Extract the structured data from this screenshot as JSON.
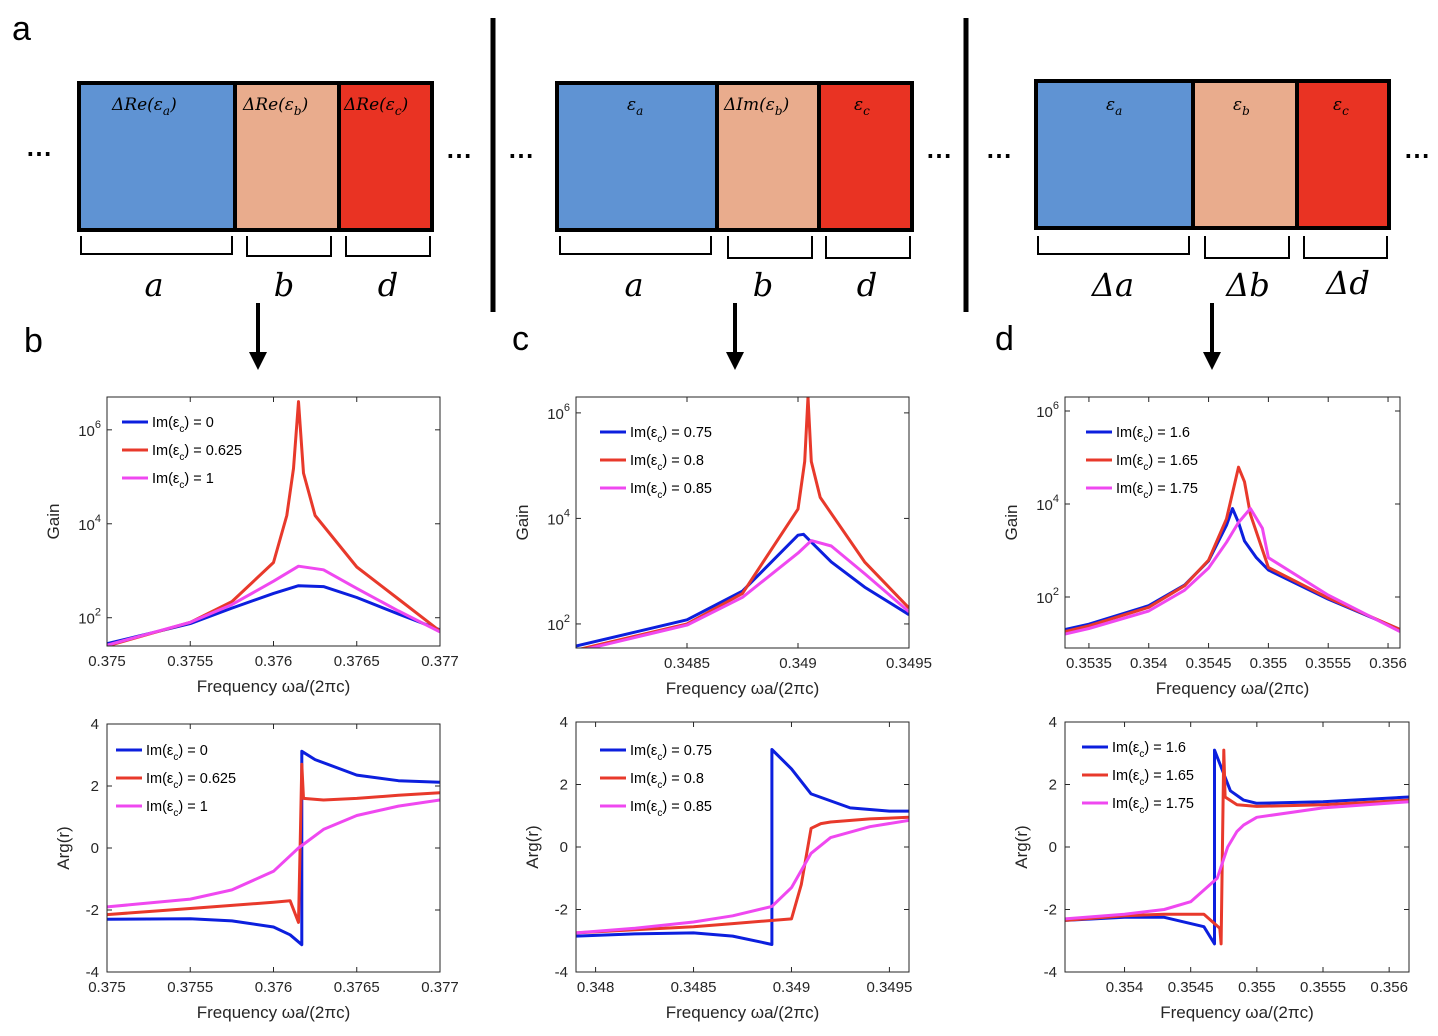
{
  "panel_labels": {
    "a": "a",
    "b": "b",
    "c": "c",
    "d": "d"
  },
  "ellipsis": "⋯",
  "colors": {
    "block_a": "#5f93d3",
    "block_b": "#e9ac8d",
    "block_c": "#e93323",
    "series_blue": "#0c1fde",
    "series_red": "#e8392b",
    "series_magenta": "#ef48f0"
  },
  "schematics": [
    {
      "blocks": [
        "ΔRe(ε",
        "ΔRe(ε",
        "ΔRe(ε"
      ],
      "subs": [
        "a",
        "b",
        "c"
      ],
      "closers": [
        ")",
        ")",
        ")"
      ],
      "dims": [
        "a",
        "b",
        "d"
      ]
    },
    {
      "blocks": [
        "ε",
        "ΔIm(ε",
        "ε"
      ],
      "subs": [
        "a",
        "b",
        "c"
      ],
      "closers": [
        "",
        ")",
        ""
      ],
      "dims": [
        "a",
        "b",
        "d"
      ]
    },
    {
      "blocks": [
        "ε",
        "ε",
        "ε"
      ],
      "subs": [
        "a",
        "b",
        "c"
      ],
      "closers": [
        "",
        "",
        ""
      ],
      "dims": [
        "Δa",
        "Δb",
        "Δd"
      ]
    }
  ],
  "chart_data": [
    {
      "type": "line",
      "panel": "b",
      "ylabel": "Gain",
      "xlabel": "Frequency ωa/(2πc)",
      "yscale": "log",
      "xlim": [
        0.375,
        0.377
      ],
      "ylim": [
        25,
        5000000
      ],
      "xticks": [
        0.375,
        0.3755,
        0.376,
        0.3765,
        0.377
      ],
      "xticklabels": [
        "0.375",
        "0.3755",
        "0.376",
        "0.3765",
        "0.377"
      ],
      "yticks": [
        100,
        10000,
        1000000
      ],
      "ytick_exp": [
        "2",
        "4",
        "6"
      ],
      "legend_items": [
        "Im(ε",
        "Im(ε",
        "Im(ε"
      ],
      "legend_values": [
        "= 0",
        "= 0.625",
        "= 1"
      ],
      "legend_sub": "c",
      "series": [
        {
          "name": "Im(εc) = 0",
          "color": "blue",
          "x": [
            0.375,
            0.3755,
            0.37575,
            0.376,
            0.37615,
            0.3763,
            0.3765,
            0.37675,
            0.377
          ],
          "y": [
            28,
            75,
            160,
            330,
            480,
            460,
            270,
            120,
            55
          ]
        },
        {
          "name": "Im(εc) = 0.625",
          "color": "red",
          "x": [
            0.375,
            0.3755,
            0.37575,
            0.376,
            0.37608,
            0.37612,
            0.37615,
            0.37618,
            0.37625,
            0.3765,
            0.37675,
            0.377
          ],
          "y": [
            25,
            80,
            220,
            1500,
            15000,
            150000,
            4000000,
            120000,
            15000,
            1200,
            250,
            52
          ]
        },
        {
          "name": "Im(εc) = 1",
          "color": "magenta",
          "x": [
            0.375,
            0.3755,
            0.37575,
            0.376,
            0.37615,
            0.3763,
            0.3765,
            0.37675,
            0.377
          ],
          "y": [
            26,
            80,
            190,
            600,
            1250,
            1050,
            420,
            140,
            50
          ]
        }
      ]
    },
    {
      "type": "line",
      "panel": "c",
      "ylabel": "Gain",
      "xlabel": "Frequency ωa/(2πc)",
      "yscale": "log",
      "xlim": [
        0.348,
        0.3495
      ],
      "ylim": [
        35,
        2000000
      ],
      "xticks": [
        0.3485,
        0.349,
        0.3495
      ],
      "xticklabels": [
        "0.3485",
        "0.349",
        "0.3495"
      ],
      "yticks": [
        100,
        10000,
        1000000
      ],
      "ytick_exp": [
        "2",
        "4",
        "6"
      ],
      "legend_items": [
        "Im(ε",
        "Im(ε",
        "Im(ε"
      ],
      "legend_values": [
        "= 0.75",
        "= 0.8",
        "= 0.85"
      ],
      "legend_sub": "c",
      "series": [
        {
          "name": "Im(εc) = 0.75",
          "color": "blue",
          "x": [
            0.348,
            0.3485,
            0.34875,
            0.349,
            0.349025,
            0.34915,
            0.3493,
            0.3495
          ],
          "y": [
            38,
            120,
            420,
            4800,
            5000,
            1500,
            500,
            150
          ]
        },
        {
          "name": "Im(εc) = 0.8",
          "color": "red",
          "x": [
            0.348,
            0.3485,
            0.34875,
            0.349,
            0.34903,
            0.349045,
            0.34906,
            0.3491,
            0.3493,
            0.3495
          ],
          "y": [
            32,
            100,
            380,
            15000,
            120000,
            2000000,
            120000,
            25000,
            1500,
            200
          ]
        },
        {
          "name": "Im(εc) = 0.85",
          "color": "magenta",
          "x": [
            0.348,
            0.3485,
            0.34875,
            0.349,
            0.34906,
            0.34915,
            0.3493,
            0.3495
          ],
          "y": [
            30,
            95,
            320,
            2200,
            3800,
            3000,
            900,
            170
          ]
        }
      ]
    },
    {
      "type": "line",
      "panel": "d",
      "ylabel": "Gain",
      "xlabel": "Frequency ωa/(2πc)",
      "yscale": "log",
      "xlim": [
        0.3533,
        0.3561
      ],
      "ylim": [
        8,
        2000000
      ],
      "xticks": [
        0.3535,
        0.354,
        0.3545,
        0.355,
        0.3555,
        0.356
      ],
      "xticklabels": [
        "0.3535",
        "0.354",
        "0.3545",
        "0.355",
        "0.3555",
        "0.356"
      ],
      "yticks": [
        100,
        10000,
        1000000
      ],
      "ytick_exp": [
        "2",
        "4",
        "6"
      ],
      "legend_items": [
        "Im(ε",
        "Im(ε",
        "Im(ε"
      ],
      "legend_values": [
        "= 1.6",
        "= 1.65",
        "= 1.75"
      ],
      "legend_sub": "c",
      "series": [
        {
          "name": "Im(εc) = 1.6",
          "color": "blue",
          "x": [
            0.3533,
            0.3535,
            0.354,
            0.3543,
            0.3545,
            0.35465,
            0.3547,
            0.35475,
            0.3548,
            0.3549,
            0.355,
            0.3555,
            0.3561
          ],
          "y": [
            20,
            26,
            65,
            180,
            600,
            3500,
            8000,
            4000,
            1600,
            700,
            380,
            90,
            20
          ]
        },
        {
          "name": "Im(εc) = 1.65",
          "color": "red",
          "x": [
            0.3533,
            0.3535,
            0.354,
            0.3543,
            0.3545,
            0.35465,
            0.35475,
            0.3548,
            0.35485,
            0.3549,
            0.355,
            0.3555,
            0.3561
          ],
          "y": [
            18,
            24,
            60,
            175,
            620,
            4800,
            62000,
            30000,
            6000,
            2500,
            430,
            95,
            20
          ]
        },
        {
          "name": "Im(εc) = 1.75",
          "color": "magenta",
          "x": [
            0.3533,
            0.3535,
            0.354,
            0.3543,
            0.3545,
            0.35465,
            0.35475,
            0.35485,
            0.35495,
            0.355,
            0.3555,
            0.3561
          ],
          "y": [
            16,
            21,
            50,
            140,
            420,
            1500,
            4000,
            8000,
            3000,
            700,
            110,
            18
          ]
        }
      ]
    },
    {
      "type": "line",
      "panel": "b",
      "ylabel": "Arg(r)",
      "xlabel": "Frequency ωa/(2πc)",
      "yscale": "linear",
      "xlim": [
        0.375,
        0.377
      ],
      "ylim": [
        -4,
        4
      ],
      "xticks": [
        0.375,
        0.3755,
        0.376,
        0.3765,
        0.377
      ],
      "xticklabels": [
        "0.375",
        "0.3755",
        "0.376",
        "0.3765",
        "0.377"
      ],
      "yticks": [
        -4,
        -2,
        0,
        2,
        4
      ],
      "yticklabels": [
        "-4",
        "-2",
        "0",
        "2",
        "4"
      ],
      "legend_items": [
        "Im(ε",
        "Im(ε",
        "Im(ε"
      ],
      "legend_values": [
        "= 0",
        "= 0.625",
        "= 1"
      ],
      "legend_sub": "c",
      "series": [
        {
          "name": "Im(εc) = 0",
          "color": "blue",
          "x": [
            0.375,
            0.3755,
            0.37575,
            0.376,
            0.3761,
            0.37617,
            0.37617,
            0.37625,
            0.3765,
            0.37675,
            0.377
          ],
          "y": [
            -2.3,
            -2.28,
            -2.35,
            -2.55,
            -2.8,
            -3.12,
            3.12,
            2.85,
            2.35,
            2.17,
            2.12
          ]
        },
        {
          "name": "Im(εc) = 0.625",
          "color": "red",
          "x": [
            0.375,
            0.3755,
            0.37575,
            0.376,
            0.3761,
            0.37615,
            0.37616,
            0.37617,
            0.37618,
            0.3763,
            0.3765,
            0.37675,
            0.377
          ],
          "y": [
            -2.15,
            -1.95,
            -1.85,
            -1.75,
            -1.7,
            -2.4,
            0.0,
            2.7,
            1.6,
            1.55,
            1.6,
            1.7,
            1.78
          ]
        },
        {
          "name": "Im(εc) = 1",
          "color": "magenta",
          "x": [
            0.375,
            0.3755,
            0.37575,
            0.376,
            0.3761,
            0.37615,
            0.3763,
            0.3765,
            0.37675,
            0.377
          ],
          "y": [
            -1.9,
            -1.65,
            -1.35,
            -0.75,
            -0.25,
            0.0,
            0.6,
            1.05,
            1.35,
            1.55
          ]
        }
      ]
    },
    {
      "type": "line",
      "panel": "c",
      "ylabel": "Arg(r)",
      "xlabel": "Frequency ωa/(2πc)",
      "yscale": "linear",
      "xlim": [
        0.3479,
        0.3496
      ],
      "ylim": [
        -4,
        4
      ],
      "xticks": [
        0.348,
        0.3485,
        0.349,
        0.3495
      ],
      "xticklabels": [
        "0.348",
        "0.3485",
        "0.349",
        "0.3495"
      ],
      "yticks": [
        -4,
        -2,
        0,
        2,
        4
      ],
      "yticklabels": [
        "-4",
        "-2",
        "0",
        "2",
        "4"
      ],
      "legend_items": [
        "Im(ε",
        "Im(ε",
        "Im(ε"
      ],
      "legend_values": [
        "= 0.75",
        "= 0.8",
        "= 0.85"
      ],
      "legend_sub": "c",
      "series": [
        {
          "name": "Im(εc) = 0.75",
          "color": "blue",
          "x": [
            0.3479,
            0.3482,
            0.3485,
            0.3487,
            0.34885,
            0.3489,
            0.3489,
            0.349,
            0.3491,
            0.3493,
            0.3495,
            0.3496
          ],
          "y": [
            -2.85,
            -2.78,
            -2.75,
            -2.85,
            -3.05,
            -3.12,
            3.12,
            2.5,
            1.7,
            1.25,
            1.15,
            1.15
          ]
        },
        {
          "name": "Im(εc) = 0.8",
          "color": "red",
          "x": [
            0.3479,
            0.3482,
            0.3485,
            0.3487,
            0.349,
            0.34905,
            0.3491,
            0.34915,
            0.3492,
            0.3494,
            0.3496
          ],
          "y": [
            -2.75,
            -2.65,
            -2.55,
            -2.45,
            -2.3,
            -1.2,
            0.6,
            0.75,
            0.8,
            0.9,
            0.95
          ]
        },
        {
          "name": "Im(εc) = 0.85",
          "color": "magenta",
          "x": [
            0.3479,
            0.3482,
            0.3485,
            0.3487,
            0.3489,
            0.349,
            0.3491,
            0.3492,
            0.3494,
            0.3496
          ],
          "y": [
            -2.75,
            -2.6,
            -2.4,
            -2.2,
            -1.9,
            -1.3,
            -0.2,
            0.3,
            0.65,
            0.85
          ]
        }
      ]
    },
    {
      "type": "line",
      "panel": "d",
      "ylabel": "Arg(r)",
      "xlabel": "Frequency ωa/(2πc)",
      "yscale": "linear",
      "xlim": [
        0.35355,
        0.35615
      ],
      "ylim": [
        -4,
        4
      ],
      "xticks": [
        0.354,
        0.3545,
        0.355,
        0.3555,
        0.356
      ],
      "xticklabels": [
        "0.354",
        "0.3545",
        "0.355",
        "0.3555",
        "0.356"
      ],
      "yticks": [
        -4,
        -2,
        0,
        2,
        4
      ],
      "yticklabels": [
        "-4",
        "-2",
        "0",
        "2",
        "4"
      ],
      "legend_items": [
        "Im(ε",
        "Im(ε",
        "Im(ε"
      ],
      "legend_values": [
        "= 1.6",
        "= 1.65",
        "= 1.75"
      ],
      "legend_sub": "c",
      "series": [
        {
          "name": "Im(εc) = 1.6",
          "color": "blue",
          "x": [
            0.35355,
            0.354,
            0.3543,
            0.3546,
            0.35468,
            0.35468,
            0.3548,
            0.3549,
            0.355,
            0.3555,
            0.35615
          ],
          "y": [
            -2.35,
            -2.25,
            -2.25,
            -2.55,
            -3.1,
            3.1,
            1.8,
            1.5,
            1.4,
            1.45,
            1.6
          ]
        },
        {
          "name": "Im(εc) = 1.65",
          "color": "red",
          "x": [
            0.35355,
            0.354,
            0.3543,
            0.3546,
            0.35472,
            0.35473,
            0.35475,
            0.35476,
            0.35485,
            0.355,
            0.3555,
            0.35615
          ],
          "y": [
            -2.35,
            -2.2,
            -2.15,
            -2.15,
            -2.6,
            -3.1,
            3.1,
            1.6,
            1.35,
            1.3,
            1.35,
            1.5
          ]
        },
        {
          "name": "Im(εc) = 1.75",
          "color": "magenta",
          "x": [
            0.35355,
            0.354,
            0.3543,
            0.3545,
            0.3547,
            0.35478,
            0.35485,
            0.3549,
            0.355,
            0.3555,
            0.35615
          ],
          "y": [
            -2.3,
            -2.15,
            -2.0,
            -1.75,
            -1.0,
            0.0,
            0.5,
            0.7,
            0.95,
            1.25,
            1.45
          ]
        }
      ]
    }
  ]
}
